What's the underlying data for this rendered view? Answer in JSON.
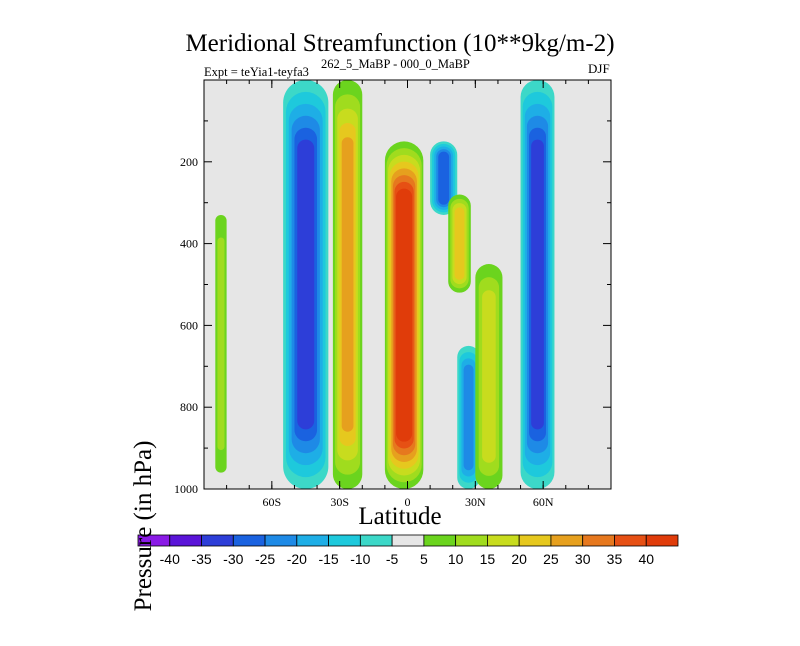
{
  "chart_data": {
    "type": "heatmap",
    "title": "Meridional Streamfunction (10**9kg/m-2)",
    "subtitle_left": "Expt = teYia1-teyfa3",
    "subtitle_center": "262_5_MaBP - 000_0_MaBP",
    "subtitle_right": "DJF",
    "xlabel": "Latitude",
    "ylabel": "Pressure (in hPa)",
    "xlim": [
      -90,
      90
    ],
    "ylim": [
      1000,
      0
    ],
    "x_ticks": [
      {
        "value": -60,
        "label": "60S"
      },
      {
        "value": -30,
        "label": "30S"
      },
      {
        "value": 0,
        "label": "0"
      },
      {
        "value": 30,
        "label": "30N"
      },
      {
        "value": 60,
        "label": "60N"
      }
    ],
    "y_ticks": [
      {
        "value": 200,
        "label": "200"
      },
      {
        "value": 400,
        "label": "400"
      },
      {
        "value": 600,
        "label": "600"
      },
      {
        "value": 800,
        "label": "800"
      },
      {
        "value": 1000,
        "label": "1000"
      }
    ],
    "colorbar": {
      "labels": [
        "-40",
        "-35",
        "-30",
        "-25",
        "-20",
        "-15",
        "-10",
        "-5",
        "5",
        "10",
        "15",
        "20",
        "25",
        "30",
        "35",
        "40"
      ],
      "colors": [
        "#8a1ae6",
        "#5a14d8",
        "#2d3ed8",
        "#1a62e0",
        "#1e8ae6",
        "#1eaee6",
        "#1ec9dc",
        "#3cd8c8",
        "#e6e6e6",
        "#6bd41e",
        "#a0dc1e",
        "#c8dc1e",
        "#e6c81e",
        "#e6a01e",
        "#e6781e",
        "#e65014",
        "#e03c0a"
      ]
    },
    "features": [
      {
        "name": "southern-jet-positive",
        "lat": [
          -85,
          -80
        ],
        "p": [
          330,
          960
        ],
        "peak": 10
      },
      {
        "name": "southern-negative-cell",
        "lat": [
          -55,
          -35
        ],
        "p": [
          0,
          1000
        ],
        "peak": -30
      },
      {
        "name": "southern-positive-band",
        "lat": [
          -33,
          -20
        ],
        "p": [
          0,
          1000
        ],
        "peak": 25
      },
      {
        "name": "hadley-cell-main",
        "lat": [
          -10,
          7
        ],
        "p": [
          150,
          1000
        ],
        "peak": 45
      },
      {
        "name": "northern-negative-upper",
        "lat": [
          10,
          22
        ],
        "p": [
          150,
          330
        ],
        "peak": -25
      },
      {
        "name": "northern-positive-mid",
        "lat": [
          18,
          28
        ],
        "p": [
          280,
          520
        ],
        "peak": 20
      },
      {
        "name": "northern-negative-lower",
        "lat": [
          22,
          32
        ],
        "p": [
          650,
          1000
        ],
        "peak": -20
      },
      {
        "name": "northern-positive-lower",
        "lat": [
          30,
          42
        ],
        "p": [
          450,
          1000
        ],
        "peak": 15
      },
      {
        "name": "northern-negative-cell",
        "lat": [
          50,
          65
        ],
        "p": [
          0,
          1000
        ],
        "peak": -30
      }
    ]
  }
}
